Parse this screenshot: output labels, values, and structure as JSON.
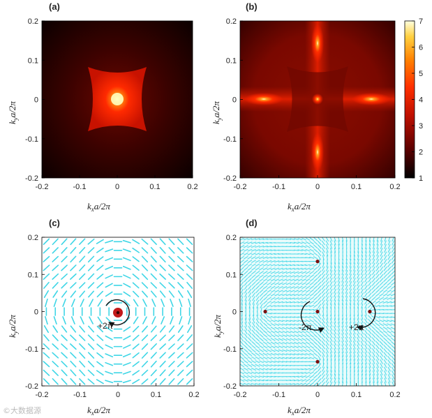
{
  "panels": {
    "a": {
      "label": "(a)"
    },
    "b": {
      "label": "(b)"
    },
    "c": {
      "label": "(c)",
      "winding_label": "+2π"
    },
    "d": {
      "label": "(d)",
      "winding_labels": [
        "-2π",
        "+2π"
      ]
    }
  },
  "axes": {
    "x_ticks": [
      "-0.2",
      "-0.1",
      "0",
      "0.1",
      "0.2"
    ],
    "y_ticks": [
      "0.2",
      "0.1",
      "0",
      "-0.1",
      "-0.2"
    ],
    "xlabel": {
      "k": "k",
      "sub": "x",
      "rest": "a/2π"
    },
    "ylabel": {
      "k": "k",
      "sub": "y",
      "rest": "a/2π"
    }
  },
  "colorbar": {
    "ticks": [
      "7",
      "6",
      "5",
      "4",
      "3",
      "2",
      "1"
    ],
    "range": [
      1,
      7
    ],
    "colors": [
      "#000000",
      "#5a0000",
      "#c01000",
      "#ff3000",
      "#ff8000",
      "#ffd040",
      "#ffffe0"
    ]
  },
  "chart_data": [
    {
      "type": "heatmap",
      "panel": "a",
      "x_range": [
        -0.2,
        0.2
      ],
      "y_range": [
        -0.2,
        0.2
      ],
      "peak": {
        "x": 0,
        "y": 0
      }
    },
    {
      "type": "heatmap",
      "panel": "b",
      "x_range": [
        -0.2,
        0.2
      ],
      "y_range": [
        -0.2,
        0.2
      ],
      "peaks": [
        {
          "x": -0.14,
          "y": 0
        },
        {
          "x": 0.14,
          "y": 0
        },
        {
          "x": 0,
          "y": 0.14
        },
        {
          "x": 0,
          "y": -0.14
        },
        {
          "x": 0,
          "y": 0
        }
      ],
      "colorbar_range": [
        1,
        7
      ]
    },
    {
      "type": "scatter",
      "panel": "c",
      "x_range": [
        -0.2,
        0.2
      ],
      "y_range": [
        -0.2,
        0.2
      ],
      "singularities": [
        {
          "x": 0,
          "y": 0,
          "charge": "+2π"
        }
      ]
    },
    {
      "type": "scatter",
      "panel": "d",
      "x_range": [
        -0.2,
        0.2
      ],
      "y_range": [
        -0.2,
        0.2
      ],
      "singularities": [
        {
          "x": 0,
          "y": 0,
          "charge": "-2π"
        },
        {
          "x": 0.135,
          "y": 0,
          "charge": "+2π"
        },
        {
          "x": -0.135,
          "y": 0
        },
        {
          "x": 0,
          "y": 0.135
        },
        {
          "x": 0,
          "y": -0.135
        }
      ]
    }
  ],
  "watermark": "©大数据源"
}
